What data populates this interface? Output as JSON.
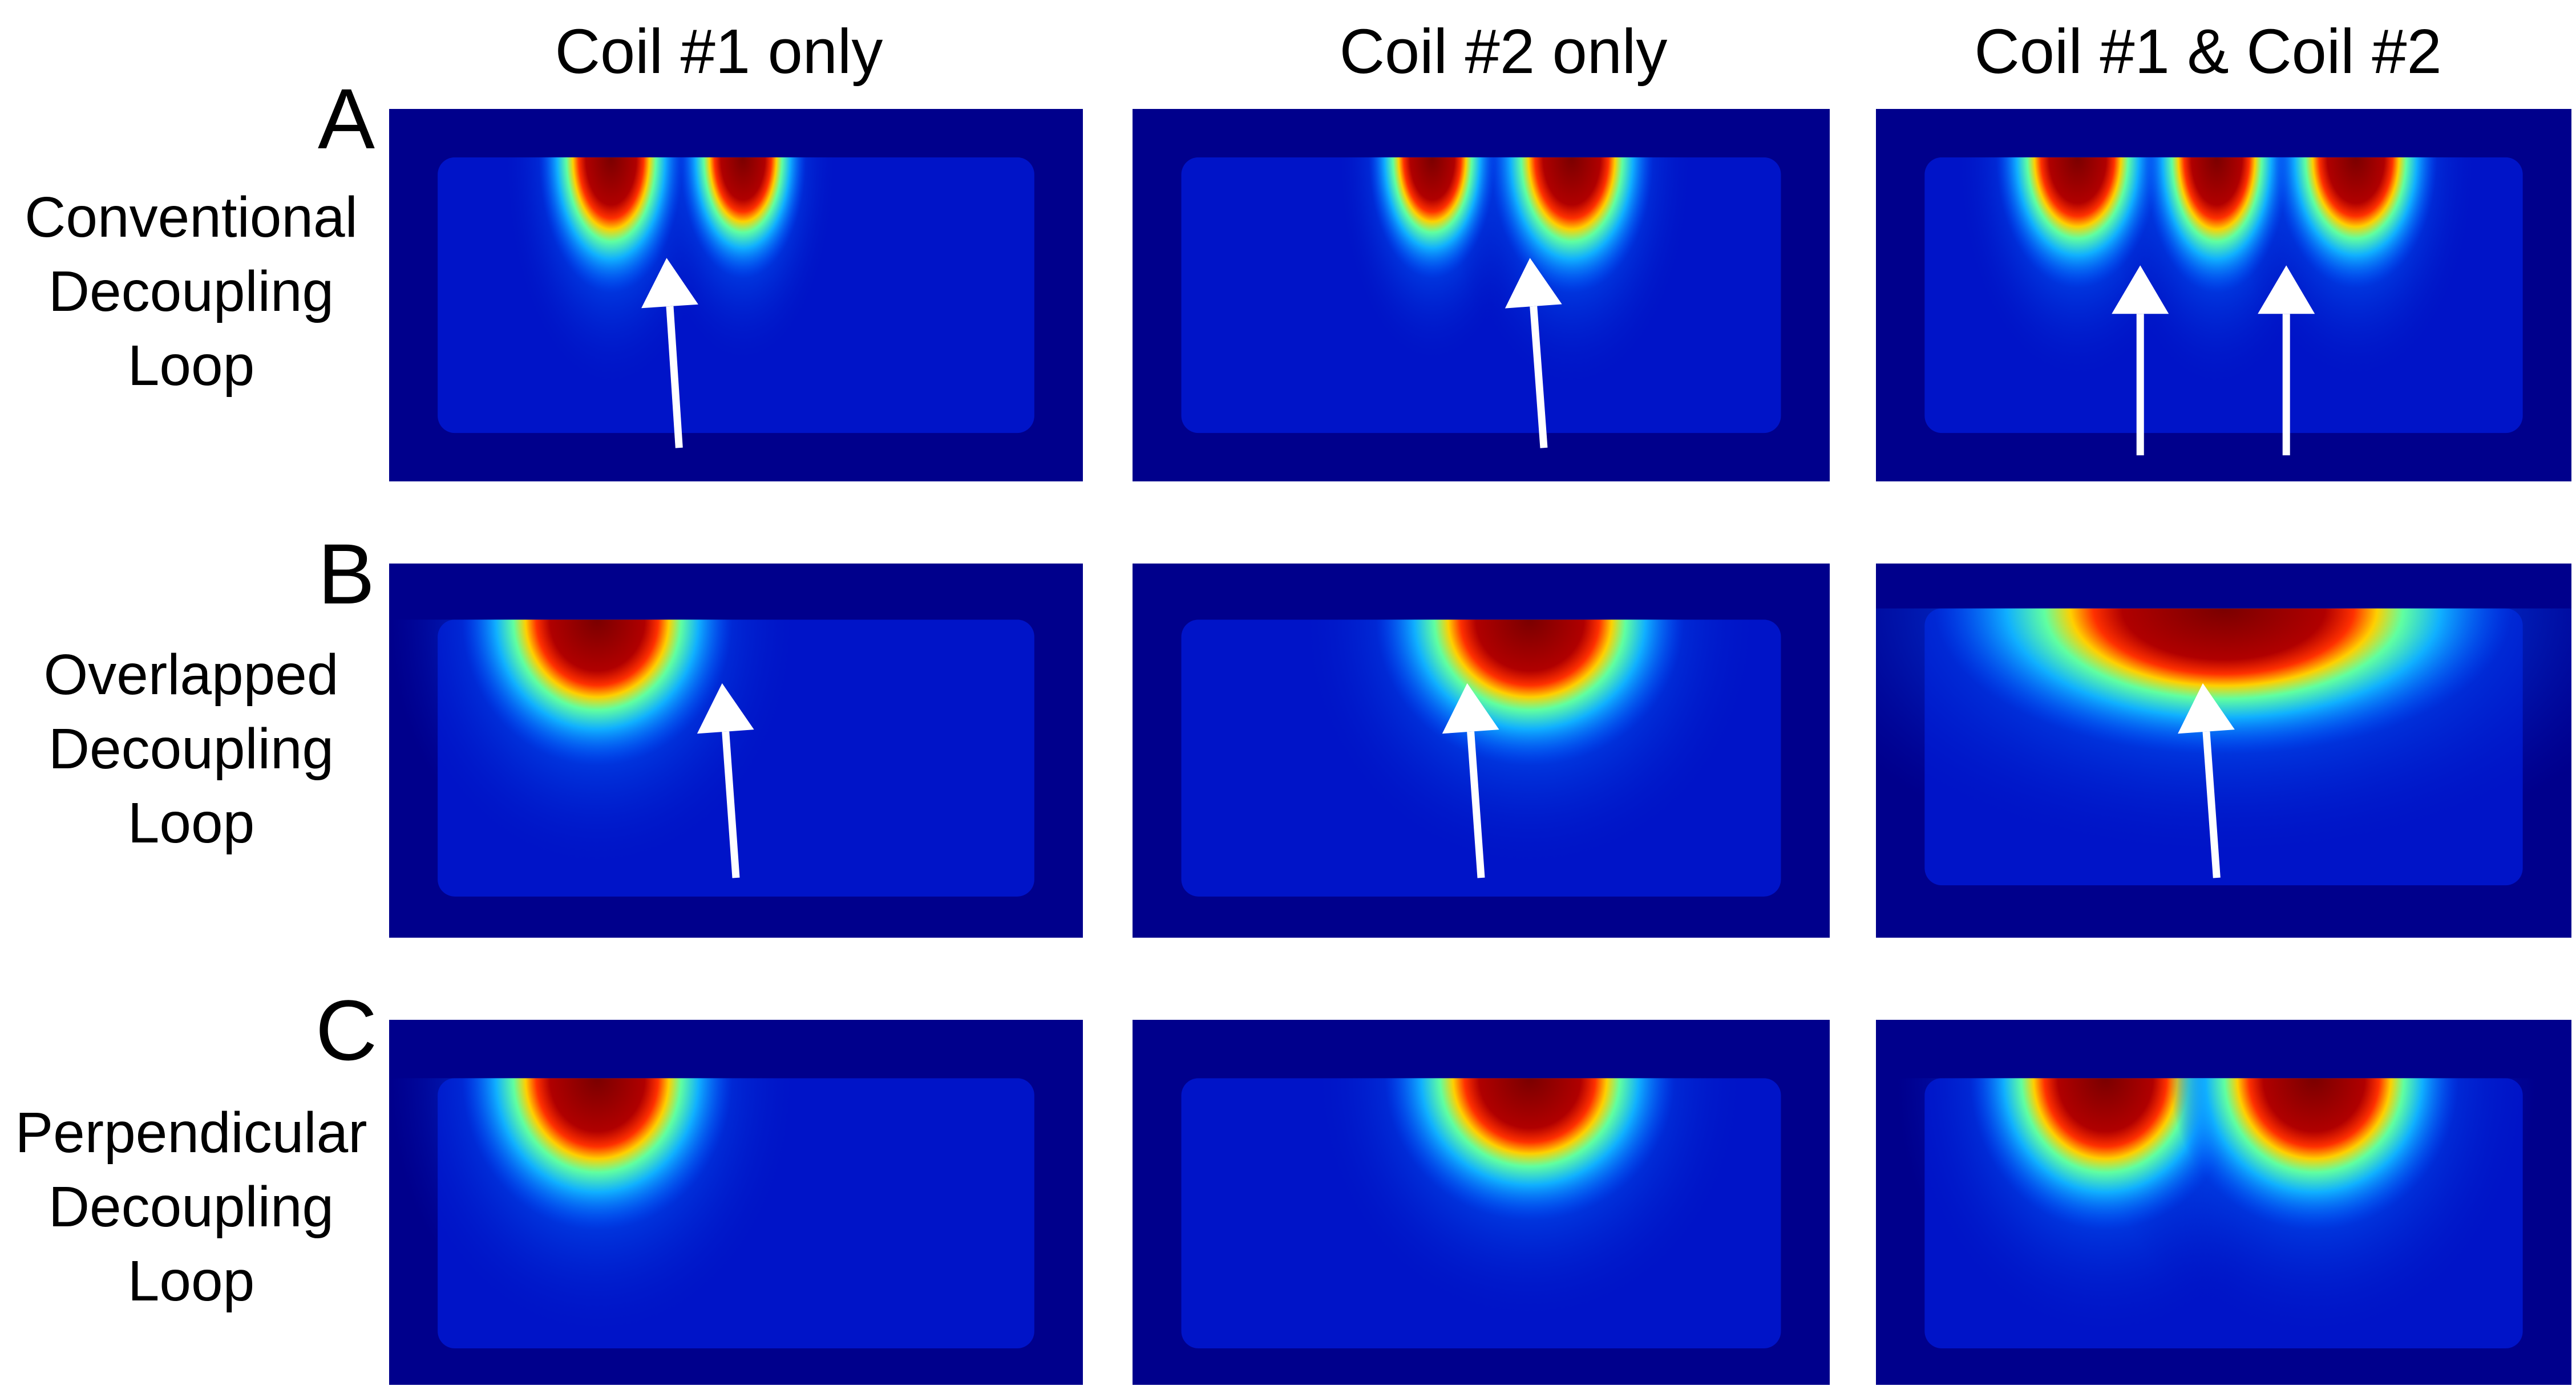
{
  "headers": {
    "columns": [
      "Coil #1 only",
      "Coil #2 only",
      "Coil #1 & Coil #2"
    ]
  },
  "rows": [
    {
      "letter": "A",
      "label": [
        "Conventional",
        "Decoupling",
        "Loop"
      ]
    },
    {
      "letter": "B",
      "label": [
        "Overlapped",
        "Decoupling",
        "Loop"
      ]
    },
    {
      "letter": "C",
      "label": [
        "Perpendicular",
        "Decoupling",
        "Loop"
      ]
    }
  ]
}
